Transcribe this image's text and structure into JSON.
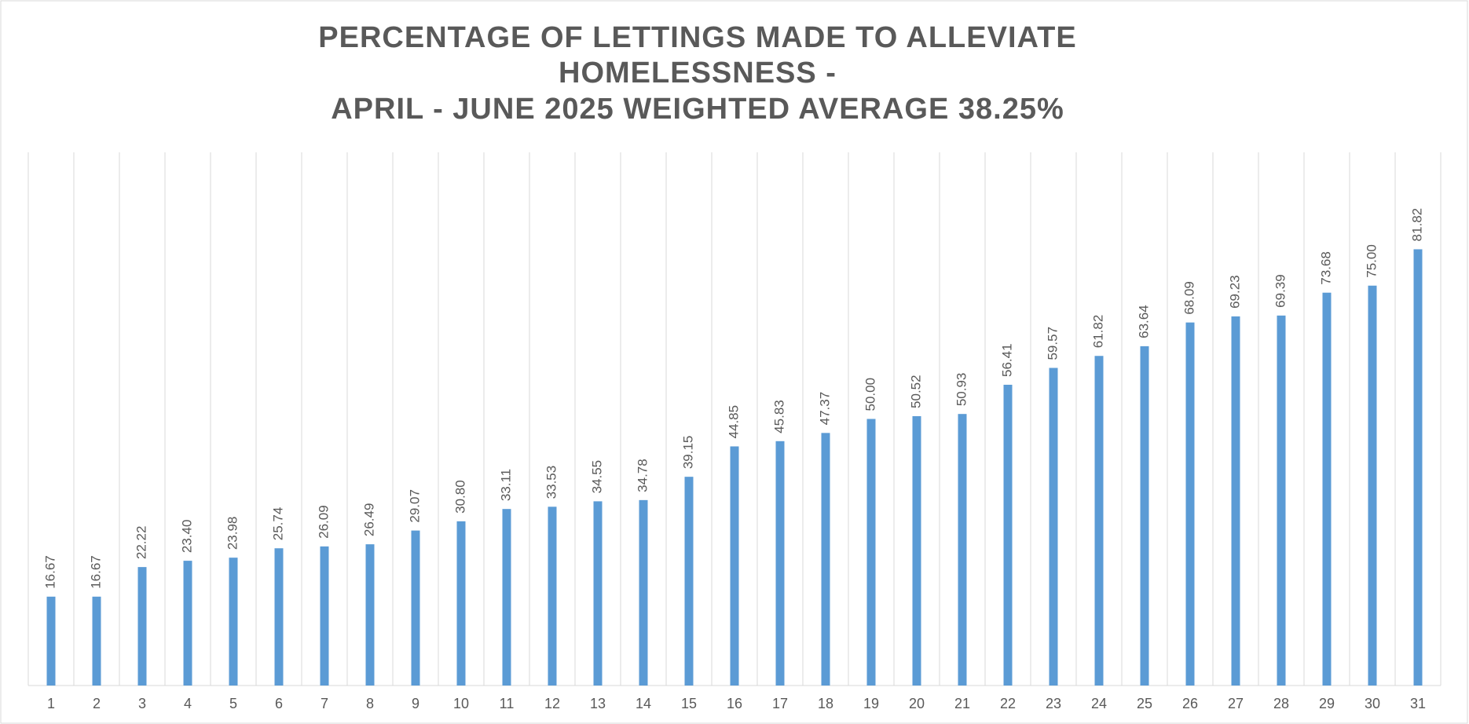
{
  "chart_data": {
    "type": "bar",
    "title": [
      "PERCENTAGE OF LETTINGS MADE TO ALLEVIATE",
      "HOMELESSNESS -",
      "APRIL - JUNE 2025 WEIGHTED AVERAGE 38.25%"
    ],
    "categories": [
      "1",
      "2",
      "3",
      "4",
      "5",
      "6",
      "7",
      "8",
      "9",
      "10",
      "11",
      "12",
      "13",
      "14",
      "15",
      "16",
      "17",
      "18",
      "19",
      "20",
      "21",
      "22",
      "23",
      "24",
      "25",
      "26",
      "27",
      "28",
      "29",
      "30",
      "31"
    ],
    "values": [
      16.67,
      16.67,
      22.22,
      23.4,
      23.98,
      25.74,
      26.09,
      26.49,
      29.07,
      30.8,
      33.11,
      33.53,
      34.55,
      34.78,
      39.15,
      44.85,
      45.83,
      47.37,
      50,
      50.52,
      50.93,
      56.41,
      59.57,
      61.82,
      63.64,
      68.09,
      69.23,
      69.39,
      73.68,
      75,
      81.82
    ],
    "value_labels": [
      "16.67",
      "16.67",
      "22.22",
      "23.40",
      "23.98",
      "25.74",
      "26.09",
      "26.49",
      "29.07",
      "30.80",
      "33.11",
      "33.53",
      "34.55",
      "34.78",
      "39.15",
      "44.85",
      "45.83",
      "47.37",
      "50.00",
      "50.52",
      "50.93",
      "56.41",
      "59.57",
      "61.82",
      "63.64",
      "68.09",
      "69.23",
      "69.39",
      "73.68",
      "75.00",
      "81.82"
    ],
    "color": "#5b9bd5",
    "ylim": [
      0,
      100
    ],
    "grid": true
  }
}
